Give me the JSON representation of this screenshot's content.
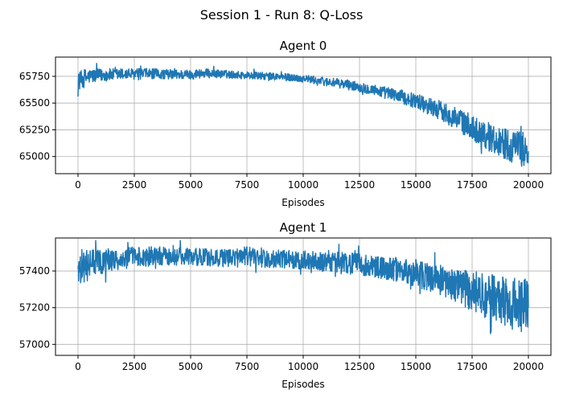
{
  "figure": {
    "suptitle": "Session 1 - Run 8: Q-Loss"
  },
  "chart_data": [
    {
      "type": "line",
      "title": "Agent 0",
      "xlabel": "Episodes",
      "ylabel": "",
      "xlim": [
        -1000,
        21000
      ],
      "ylim": [
        64840,
        65930
      ],
      "x_ticks": [
        0,
        2500,
        5000,
        7500,
        10000,
        12500,
        15000,
        17500,
        20000
      ],
      "y_ticks": [
        65000,
        65250,
        65500,
        65750
      ],
      "x_tick_labels": [
        "0",
        "2500",
        "5000",
        "7500",
        "10000",
        "12500",
        "15000",
        "17500",
        "20000"
      ],
      "y_tick_labels": [
        "65000",
        "65250",
        "65500",
        "65750"
      ],
      "grid": true,
      "color": "#1f77b4",
      "series": [
        {
          "x": [
            0,
            250,
            500,
            1000,
            2000,
            3000,
            4000,
            5000,
            5500,
            6000,
            7000,
            8000,
            9000,
            10000,
            11000,
            12000,
            13000,
            14000,
            15000,
            15500,
            16000,
            16500,
            17000,
            17500,
            18000,
            18500,
            19000,
            19500,
            20000
          ],
          "mean": [
            65700,
            65730,
            65750,
            65760,
            65770,
            65775,
            65770,
            65765,
            65780,
            65775,
            65765,
            65755,
            65745,
            65730,
            65700,
            65670,
            65630,
            65580,
            65520,
            65480,
            65440,
            65390,
            65330,
            65270,
            65210,
            65160,
            65120,
            65080,
            65060
          ],
          "amp": [
            80,
            90,
            70,
            60,
            55,
            50,
            45,
            45,
            45,
            40,
            35,
            35,
            35,
            35,
            40,
            45,
            50,
            60,
            70,
            80,
            90,
            100,
            110,
            120,
            130,
            140,
            150,
            160,
            170
          ]
        }
      ]
    },
    {
      "type": "line",
      "title": "Agent 1",
      "xlabel": "Episodes",
      "ylabel": "",
      "xlim": [
        -1000,
        21000
      ],
      "ylim": [
        56940,
        57580
      ],
      "x_ticks": [
        0,
        2500,
        5000,
        7500,
        10000,
        12500,
        15000,
        17500,
        20000
      ],
      "y_ticks": [
        57000,
        57200,
        57400
      ],
      "x_tick_labels": [
        "0",
        "2500",
        "5000",
        "7500",
        "10000",
        "12500",
        "15000",
        "17500",
        "20000"
      ],
      "y_tick_labels": [
        "57000",
        "57200",
        "57400"
      ],
      "grid": true,
      "color": "#1f77b4",
      "series": [
        {
          "x": [
            0,
            250,
            500,
            1000,
            2000,
            3000,
            4000,
            5000,
            6000,
            7000,
            7500,
            8000,
            9000,
            10000,
            11000,
            12000,
            13000,
            14000,
            15000,
            15500,
            16000,
            16500,
            17000,
            17500,
            18000,
            18500,
            19000,
            19500,
            20000
          ],
          "mean": [
            57430,
            57420,
            57440,
            57450,
            57470,
            57480,
            57480,
            57475,
            57475,
            57470,
            57480,
            57470,
            57465,
            57460,
            57450,
            57440,
            57425,
            57410,
            57390,
            57370,
            57350,
            57330,
            57310,
            57290,
            57270,
            57250,
            57230,
            57215,
            57210
          ],
          "amp": [
            90,
            100,
            80,
            70,
            60,
            55,
            50,
            50,
            50,
            50,
            55,
            50,
            50,
            50,
            55,
            60,
            60,
            65,
            75,
            80,
            85,
            90,
            100,
            110,
            120,
            130,
            140,
            150,
            150
          ]
        }
      ]
    }
  ]
}
